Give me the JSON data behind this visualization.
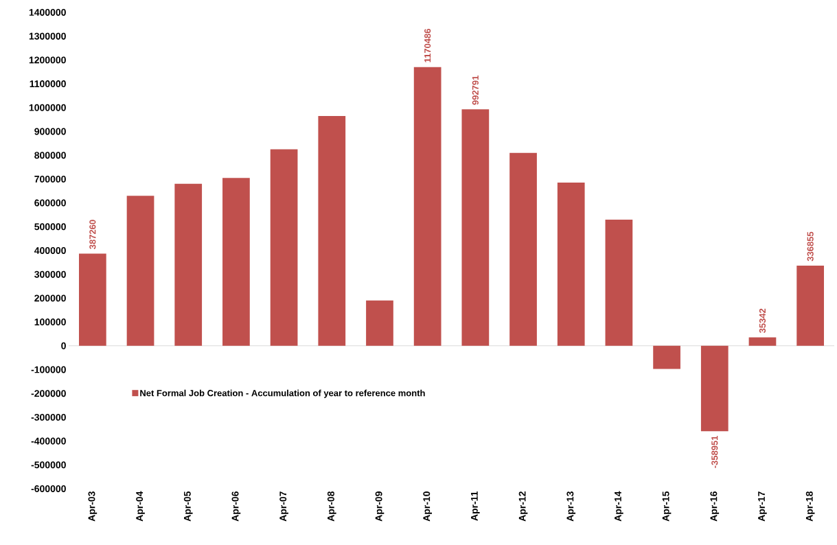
{
  "chart_data": {
    "type": "bar",
    "categories": [
      "Apr-03",
      "Apr-04",
      "Apr-05",
      "Apr-06",
      "Apr-07",
      "Apr-08",
      "Apr-09",
      "Apr-10",
      "Apr-11",
      "Apr-12",
      "Apr-13",
      "Apr-14",
      "Apr-15",
      "Apr-16",
      "Apr-17",
      "Apr-18"
    ],
    "series": [
      {
        "name": "Net Formal Job Creation  - Accumulation of year to reference month",
        "color": "#c0504d",
        "values": [
          387260,
          630000,
          680000,
          705000,
          825000,
          965000,
          190000,
          1170486,
          992791,
          810000,
          685000,
          530000,
          -97000,
          -358951,
          35342,
          336855
        ],
        "value_labels": [
          "387260",
          null,
          null,
          null,
          null,
          null,
          null,
          "1170486",
          "992791",
          null,
          null,
          null,
          null,
          "-358951",
          "35342",
          "336855"
        ]
      }
    ],
    "ylim": [
      -600000,
      1400000
    ],
    "yticks": [
      -600000,
      -500000,
      -400000,
      -300000,
      -200000,
      -100000,
      0,
      100000,
      200000,
      300000,
      400000,
      500000,
      600000,
      700000,
      800000,
      900000,
      1000000,
      1100000,
      1200000,
      1300000,
      1400000
    ],
    "ref_lines": [
      {
        "axis": "y",
        "value": 0,
        "color": "#d9d9d9"
      }
    ],
    "grid": false,
    "legend": "bottom left"
  }
}
